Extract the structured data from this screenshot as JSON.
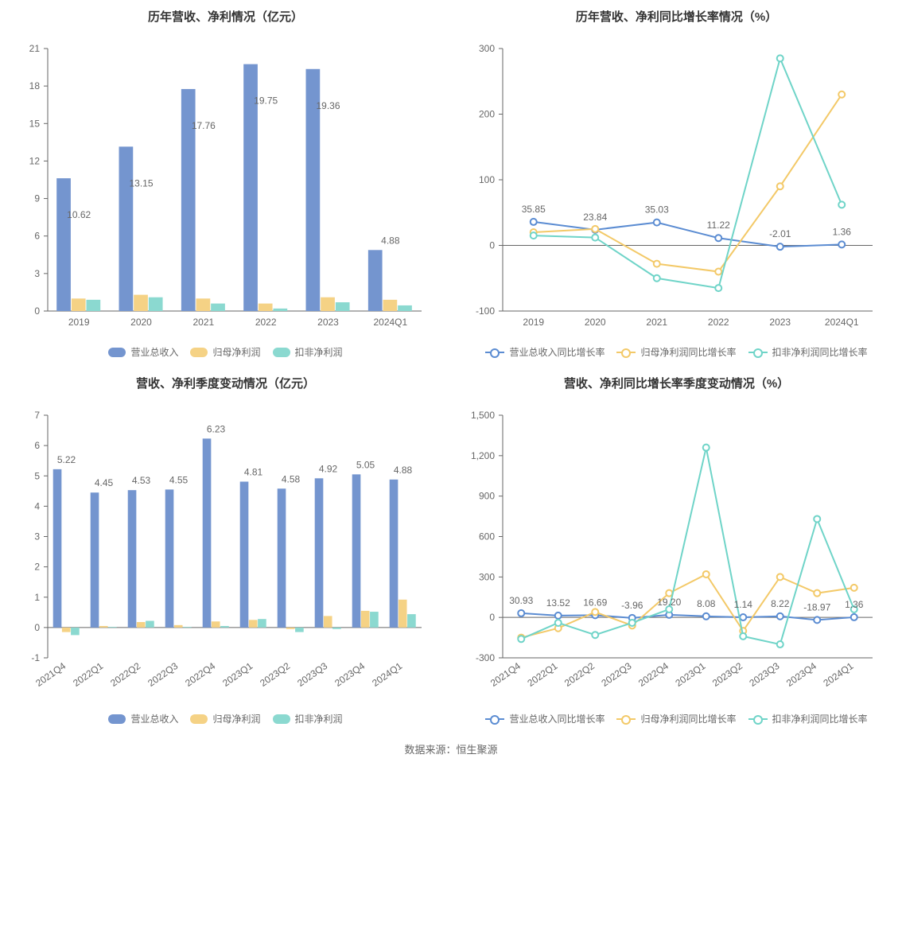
{
  "source_text": "数据来源：恒生聚源",
  "colors": {
    "series_blue": "#7495cf",
    "series_yellow": "#f5d285",
    "series_teal": "#8bd9d0",
    "line_blue": "#5b8cd2",
    "line_yellow": "#f3c968",
    "line_teal": "#6fd4c8",
    "axis": "#666666",
    "text": "#666666",
    "title": "#333333"
  },
  "chart1": {
    "title": "历年营收、净利情况（亿元）",
    "type": "bar",
    "categories": [
      "2019",
      "2020",
      "2021",
      "2022",
      "2023",
      "2024Q1"
    ],
    "ylim": [
      0,
      21
    ],
    "ytick_step": 3,
    "series": [
      {
        "name": "营业总收入",
        "color": "#7495cf",
        "values": [
          10.62,
          13.15,
          17.76,
          19.75,
          19.36,
          4.88
        ]
      },
      {
        "name": "归母净利润",
        "color": "#f5d285",
        "values": [
          1.0,
          1.3,
          1.0,
          0.6,
          1.1,
          0.9
        ]
      },
      {
        "name": "扣非净利润",
        "color": "#8bd9d0",
        "values": [
          0.9,
          1.1,
          0.6,
          0.2,
          0.7,
          0.45
        ]
      }
    ],
    "labels": [
      "10.62",
      "13.15",
      "17.76",
      "19.75",
      "19.36",
      "4.88"
    ],
    "legend": [
      "营业总收入",
      "归母净利润",
      "扣非净利润"
    ]
  },
  "chart2": {
    "title": "历年营收、净利同比增长率情况（%）",
    "type": "line",
    "categories": [
      "2019",
      "2020",
      "2021",
      "2022",
      "2023",
      "2024Q1"
    ],
    "ylim": [
      -100,
      300
    ],
    "ytick_step": 100,
    "series": [
      {
        "name": "营业总收入同比增长率",
        "color": "#5b8cd2",
        "values": [
          35.85,
          23.84,
          35.03,
          11.22,
          -2.01,
          1.36
        ]
      },
      {
        "name": "归母净利润同比增长率",
        "color": "#f3c968",
        "values": [
          20,
          25,
          -28,
          -40,
          90,
          230
        ]
      },
      {
        "name": "扣非净利润同比增长率",
        "color": "#6fd4c8",
        "values": [
          15,
          12,
          -50,
          -65,
          285,
          62
        ]
      }
    ],
    "labels": [
      "35.85",
      "23.84",
      "35.03",
      "11.22",
      "-2.01",
      "1.36"
    ],
    "legend": [
      "营业总收入同比增长率",
      "归母净利润同比增长率",
      "扣非净利润同比增长率"
    ]
  },
  "chart3": {
    "title": "营收、净利季度变动情况（亿元）",
    "type": "bar",
    "categories": [
      "2021Q4",
      "2022Q1",
      "2022Q2",
      "2022Q3",
      "2022Q4",
      "2023Q1",
      "2023Q2",
      "2023Q3",
      "2023Q4",
      "2024Q1"
    ],
    "ylim": [
      -1,
      7
    ],
    "ytick_step": 1,
    "series": [
      {
        "name": "营业总收入",
        "color": "#7495cf",
        "values": [
          5.22,
          4.45,
          4.53,
          4.55,
          6.23,
          4.81,
          4.58,
          4.92,
          5.05,
          4.88
        ]
      },
      {
        "name": "归母净利润",
        "color": "#f5d285",
        "values": [
          -0.15,
          0.05,
          0.18,
          0.08,
          0.2,
          0.25,
          -0.05,
          0.38,
          0.55,
          0.92
        ]
      },
      {
        "name": "扣非净利润",
        "color": "#8bd9d0",
        "values": [
          -0.25,
          0.02,
          0.22,
          0.02,
          0.05,
          0.28,
          -0.15,
          -0.05,
          0.52,
          0.44
        ]
      }
    ],
    "labels": [
      "5.22",
      "4.45",
      "4.53",
      "4.55",
      "6.23",
      "4.81",
      "4.58",
      "4.92",
      "5.05",
      "4.88"
    ],
    "legend": [
      "营业总收入",
      "归母净利润",
      "扣非净利润"
    ]
  },
  "chart4": {
    "title": "营收、净利同比增长率季度变动情况（%）",
    "type": "line",
    "categories": [
      "2021Q4",
      "2022Q1",
      "2022Q2",
      "2022Q3",
      "2022Q4",
      "2023Q1",
      "2023Q2",
      "2023Q3",
      "2023Q4",
      "2024Q1"
    ],
    "ylim": [
      -300,
      1500
    ],
    "ytick_step": 300,
    "series": [
      {
        "name": "营业总收入同比增长率",
        "color": "#5b8cd2",
        "values": [
          30.93,
          13.52,
          16.69,
          -3.96,
          19.2,
          8.08,
          1.14,
          8.22,
          -18.97,
          1.36
        ]
      },
      {
        "name": "归母净利润同比增长率",
        "color": "#f3c968",
        "values": [
          -150,
          -80,
          40,
          -60,
          180,
          320,
          -100,
          300,
          180,
          220
        ]
      },
      {
        "name": "扣非净利润同比增长率",
        "color": "#6fd4c8",
        "values": [
          -160,
          -40,
          -130,
          -40,
          60,
          1260,
          -140,
          -200,
          730,
          60
        ]
      }
    ],
    "labels": [
      "30.93",
      "13.52",
      "16.69",
      "-3.96",
      "19.20",
      "8.08",
      "1.14",
      "8.22",
      "-18.97",
      "1.36"
    ],
    "legend": [
      "营业总收入同比增长率",
      "归母净利润同比增长率",
      "扣非净利润同比增长率"
    ]
  }
}
